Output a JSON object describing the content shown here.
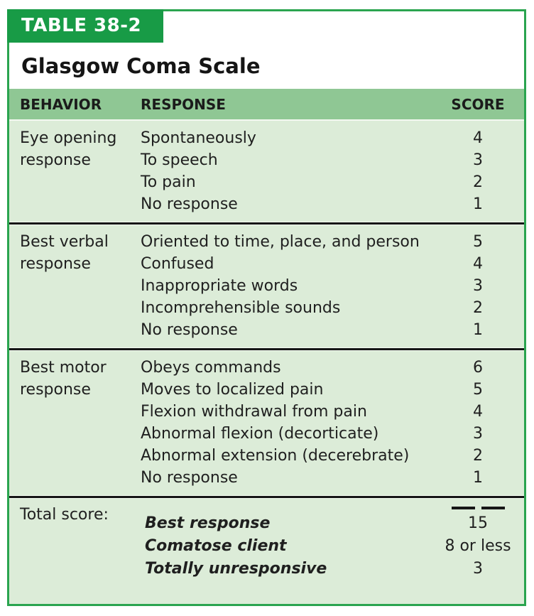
{
  "colors": {
    "tagBg": "#189b46",
    "border": "#2aa44f",
    "headBg": "#8fc794",
    "bodyBg": "#dcecd8",
    "divider": "#161616",
    "text": "#1f1f1f"
  },
  "table": {
    "tag": "TABLE 38-2",
    "title": "Glasgow Coma Scale",
    "columns": [
      "BEHAVIOR",
      "RESPONSE",
      "SCORE"
    ],
    "sections": [
      {
        "behavior": "Eye opening response",
        "rows": [
          {
            "response": "Spontaneously",
            "score": "4"
          },
          {
            "response": "To speech",
            "score": "3"
          },
          {
            "response": "To pain",
            "score": "2"
          },
          {
            "response": "No response",
            "score": "1"
          }
        ]
      },
      {
        "behavior": "Best verbal response",
        "rows": [
          {
            "response": "Oriented to time, place, and person",
            "score": "5"
          },
          {
            "response": "Confused",
            "score": "4"
          },
          {
            "response": "Inappropriate words",
            "score": "3"
          },
          {
            "response": "Incomprehensible sounds",
            "score": "2"
          },
          {
            "response": "No response",
            "score": "1"
          }
        ]
      },
      {
        "behavior": "Best motor response",
        "rows": [
          {
            "response": "Obeys commands",
            "score": "6"
          },
          {
            "response": "Moves to localized pain",
            "score": "5"
          },
          {
            "response": "Flexion withdrawal from pain",
            "score": "4"
          },
          {
            "response": "Abnormal flexion (decorticate)",
            "score": "3"
          },
          {
            "response": "Abnormal extension (decerebrate)",
            "score": "2"
          },
          {
            "response": "No response",
            "score": "1"
          }
        ]
      }
    ],
    "total": {
      "label": "Total score:",
      "rows": [
        {
          "response": "Best response",
          "score": "15"
        },
        {
          "response": "Comatose client",
          "score": "8 or less"
        },
        {
          "response": "Totally unresponsive",
          "score": "3"
        }
      ]
    }
  }
}
